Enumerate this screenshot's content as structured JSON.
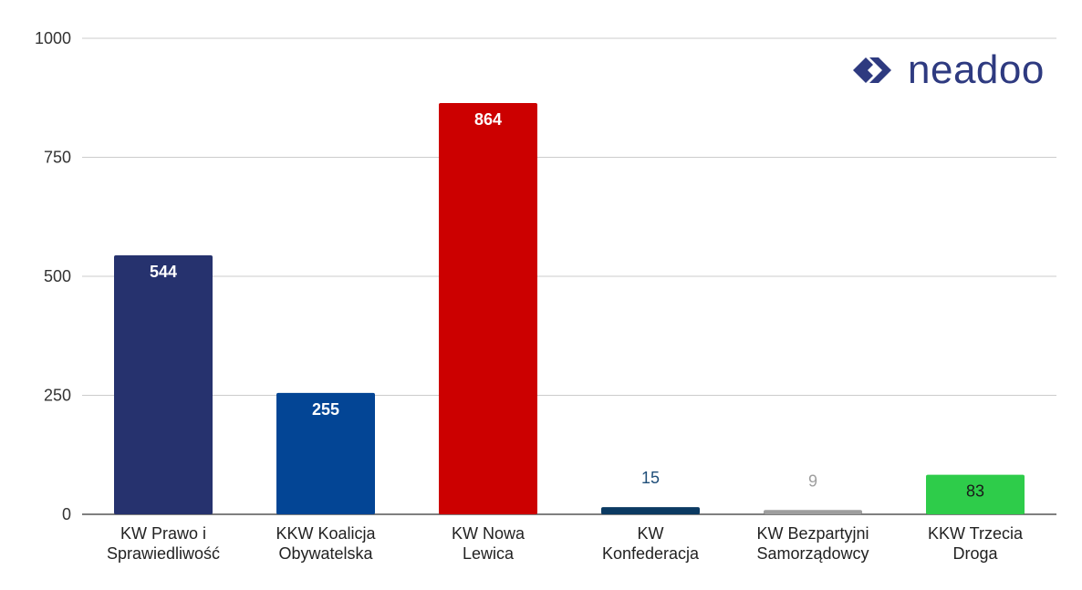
{
  "logo": {
    "text": "neadoo",
    "color": "#2e3a80"
  },
  "chart_data": {
    "type": "bar",
    "categories": [
      [
        "KW Prawo i",
        "Sprawiedliwość"
      ],
      [
        "KKW Koalicja",
        "Obywatelska"
      ],
      [
        "KW Nowa",
        "Lewica"
      ],
      [
        "KW",
        "Konfederacja"
      ],
      [
        "KW Bezpartyjni",
        "Samorządowcy"
      ],
      [
        "KKW Trzecia",
        "Droga"
      ]
    ],
    "values": [
      544,
      255,
      864,
      15,
      9,
      83
    ],
    "colors": [
      "#26326e",
      "#034595",
      "#cc0000",
      "#0b3a62",
      "#9e9e9e",
      "#2ecc4a"
    ],
    "value_label_colors": [
      "#ffffff",
      "#ffffff",
      "#ffffff",
      "#1f4e79",
      "#9e9e9e",
      "#1a1a1a"
    ],
    "value_label_position": [
      "inside",
      "inside",
      "inside",
      "above",
      "above",
      "inside"
    ],
    "yticks": [
      0,
      250,
      500,
      750,
      1000
    ],
    "ylim": [
      0,
      1000
    ],
    "grid": true
  }
}
